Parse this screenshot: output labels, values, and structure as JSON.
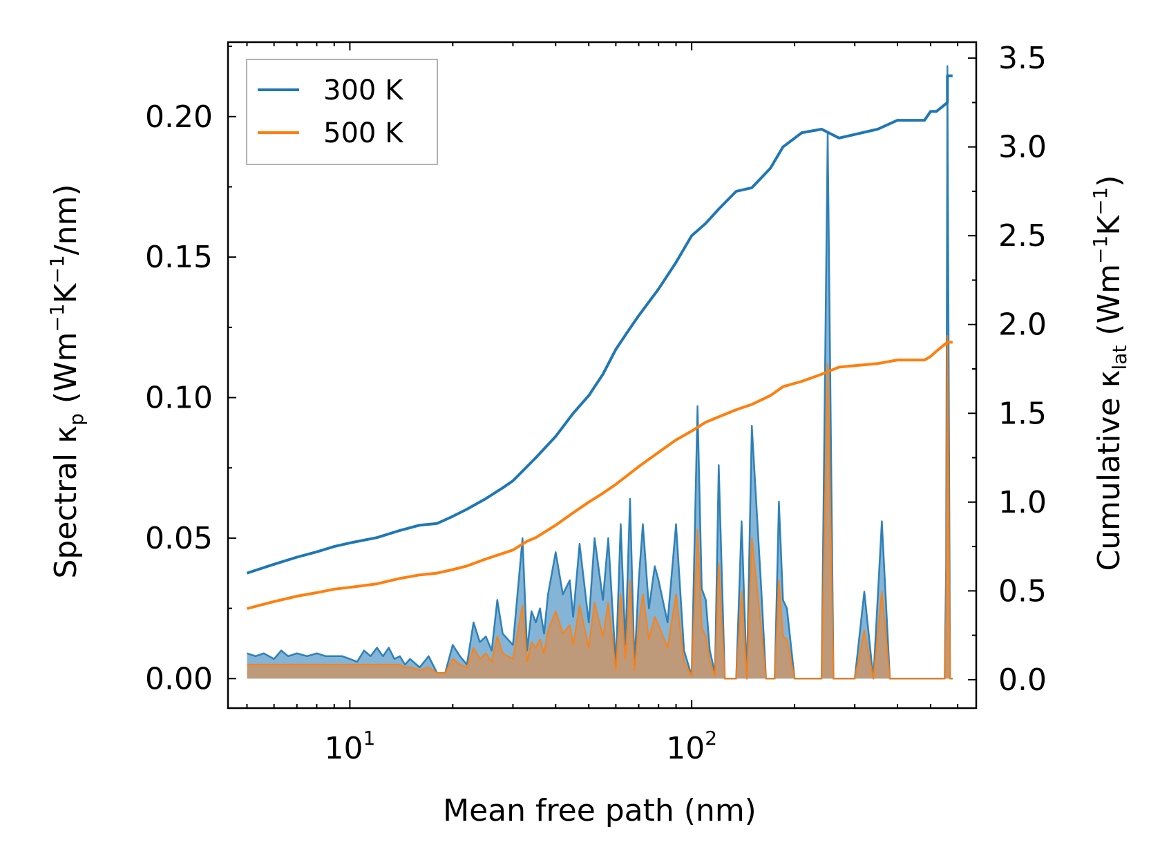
{
  "chart_data": {
    "type": "line",
    "xlabel": "Mean free path (nm)",
    "xscale": "log",
    "xlim": [
      4.4,
      680
    ],
    "x_tick_labels": [
      {
        "base": "10",
        "exp": "1",
        "value": 10
      },
      {
        "base": "10",
        "exp": "2",
        "value": 100
      }
    ],
    "left_axis": {
      "label_parts": {
        "prefix": "Spectral κ",
        "sub": "p",
        "mid1": " (Wm",
        "sup1": "−1",
        "mid2": "K",
        "sup2": "−1",
        "suffix": "/nm)"
      },
      "ylim": [
        -0.0105,
        0.2265
      ],
      "ticks": [
        0.0,
        0.05,
        0.1,
        0.15,
        0.2
      ],
      "tick_labels": [
        "0.00",
        "0.05",
        "0.10",
        "0.15",
        "0.20"
      ]
    },
    "right_axis": {
      "label_parts": {
        "prefix": "Cumulative κ",
        "sub": "lat",
        "mid1": " (Wm",
        "sup1": "−1",
        "mid2": "K",
        "sup2": "−1",
        "suffix": ")"
      },
      "ylim": [
        -0.16,
        3.59
      ],
      "ticks": [
        0.0,
        0.5,
        1.0,
        1.5,
        2.0,
        2.5,
        3.0,
        3.5
      ],
      "tick_labels": [
        "0.0",
        "0.5",
        "1.0",
        "1.5",
        "2.0",
        "2.5",
        "3.0",
        "3.5"
      ]
    },
    "legend": {
      "placement": "top-left",
      "entries": [
        "300 K",
        "500 K"
      ]
    },
    "colors": {
      "300K": "#1f77b4",
      "500K": "#ff7f0e",
      "fill300": "#1f77b4",
      "fill500": "#c8956a"
    },
    "series": [
      {
        "name": "300 K",
        "kind": "cumulative",
        "axis": "right",
        "x": [
          5,
          6,
          7,
          8,
          9,
          10,
          12,
          14,
          16,
          18,
          20,
          22,
          25,
          28,
          30,
          33,
          35,
          40,
          45,
          50,
          55,
          60,
          65,
          70,
          80,
          90,
          100,
          110,
          120,
          135,
          150,
          170,
          185,
          210,
          240,
          270,
          350,
          400,
          480,
          500,
          520,
          560,
          560.1,
          580
        ],
        "values": [
          0.6,
          0.65,
          0.69,
          0.72,
          0.75,
          0.77,
          0.8,
          0.84,
          0.87,
          0.88,
          0.92,
          0.96,
          1.02,
          1.08,
          1.12,
          1.2,
          1.25,
          1.37,
          1.5,
          1.6,
          1.72,
          1.86,
          1.96,
          2.05,
          2.2,
          2.35,
          2.5,
          2.57,
          2.65,
          2.75,
          2.77,
          2.88,
          3.0,
          3.08,
          3.1,
          3.05,
          3.1,
          3.15,
          3.15,
          3.2,
          3.2,
          3.25,
          3.4,
          3.4
        ]
      },
      {
        "name": "500 K",
        "kind": "cumulative",
        "axis": "right",
        "x": [
          5,
          6,
          7,
          8,
          9,
          10,
          12,
          14,
          16,
          18,
          20,
          22,
          25,
          30,
          33,
          35,
          40,
          45,
          50,
          55,
          60,
          70,
          80,
          90,
          100,
          110,
          120,
          135,
          150,
          170,
          185,
          210,
          240,
          270,
          350,
          400,
          480,
          500,
          520,
          560,
          580
        ],
        "values": [
          0.4,
          0.44,
          0.47,
          0.49,
          0.51,
          0.52,
          0.54,
          0.57,
          0.59,
          0.6,
          0.62,
          0.64,
          0.68,
          0.73,
          0.78,
          0.8,
          0.87,
          0.94,
          1.0,
          1.05,
          1.1,
          1.2,
          1.28,
          1.35,
          1.4,
          1.45,
          1.48,
          1.52,
          1.55,
          1.6,
          1.65,
          1.68,
          1.72,
          1.76,
          1.78,
          1.8,
          1.8,
          1.82,
          1.85,
          1.9,
          1.9
        ]
      },
      {
        "name": "300 K spectral",
        "kind": "spectral",
        "axis": "left",
        "x": [
          5,
          5.3,
          5.6,
          6,
          6.3,
          6.6,
          7,
          7.5,
          8,
          8.5,
          9,
          9.5,
          10,
          10.5,
          11,
          11.5,
          12,
          12.5,
          13,
          13.5,
          14,
          14.5,
          15,
          16,
          17,
          18,
          19,
          20,
          21,
          22,
          23,
          24,
          25,
          26,
          27,
          28,
          30,
          32,
          33,
          34,
          35,
          36,
          37,
          38,
          40,
          42,
          44,
          45,
          47,
          50,
          52,
          55,
          57,
          60,
          62,
          64,
          66,
          68,
          70,
          72,
          75,
          78,
          80,
          85,
          90,
          95,
          100,
          104,
          107,
          110,
          113,
          117,
          120,
          125,
          130,
          135,
          140,
          145,
          150,
          160,
          165,
          170,
          175,
          180,
          185,
          190,
          200,
          210,
          220,
          230,
          240,
          250,
          260,
          270,
          280,
          300,
          320,
          340,
          360,
          380,
          400,
          420,
          440,
          460,
          480,
          500,
          520,
          540,
          550,
          555,
          560,
          570,
          580
        ],
        "values": [
          0.009,
          0.008,
          0.009,
          0.007,
          0.01,
          0.008,
          0.009,
          0.008,
          0.009,
          0.008,
          0.008,
          0.008,
          0.007,
          0.006,
          0.01,
          0.008,
          0.011,
          0.008,
          0.011,
          0.007,
          0.008,
          0.005,
          0.007,
          0.004,
          0.008,
          0.002,
          0.002,
          0.012,
          0.008,
          0.005,
          0.02,
          0.013,
          0.015,
          0.01,
          0.028,
          0.016,
          0.012,
          0.05,
          0.01,
          0.024,
          0.02,
          0.025,
          0.016,
          0.03,
          0.045,
          0.03,
          0.035,
          0.022,
          0.048,
          0.02,
          0.05,
          0.028,
          0.05,
          0.005,
          0.055,
          0.012,
          0.064,
          0.005,
          0.035,
          0.055,
          0.025,
          0.04,
          0.035,
          0.02,
          0.055,
          0.01,
          0.001,
          0.097,
          0.032,
          0.028,
          0.01,
          0.002,
          0.076,
          0.0,
          0.0,
          0.0,
          0.056,
          0.0,
          0.09,
          0.031,
          0.0,
          0.0,
          0.0,
          0.063,
          0.028,
          0.025,
          0.0,
          0.0,
          0.0,
          0.0,
          0.0,
          0.194,
          0.0,
          0.0,
          0.0,
          0.0,
          0.031,
          0.0,
          0.056,
          0.0,
          0.0,
          0.0,
          0.0,
          0.0,
          0.0,
          0.0,
          0.0,
          0.0,
          0.0,
          0.04,
          0.218,
          0.0,
          0.0
        ]
      },
      {
        "name": "500 K spectral",
        "kind": "spectral",
        "axis": "left",
        "x": [
          5,
          5.3,
          5.6,
          6,
          6.3,
          6.6,
          7,
          7.5,
          8,
          8.5,
          9,
          9.5,
          10,
          10.5,
          11,
          11.5,
          12,
          12.5,
          13,
          13.5,
          14,
          14.5,
          15,
          16,
          17,
          18,
          19,
          20,
          21,
          22,
          23,
          24,
          25,
          26,
          27,
          28,
          30,
          32,
          33,
          34,
          35,
          36,
          37,
          38,
          40,
          42,
          44,
          45,
          47,
          50,
          52,
          55,
          57,
          60,
          62,
          64,
          66,
          68,
          70,
          72,
          75,
          78,
          80,
          85,
          90,
          95,
          100,
          104,
          107,
          110,
          113,
          117,
          120,
          125,
          130,
          135,
          140,
          145,
          150,
          160,
          165,
          170,
          175,
          180,
          185,
          190,
          200,
          210,
          220,
          230,
          240,
          250,
          260,
          270,
          280,
          300,
          320,
          340,
          360,
          380,
          400,
          420,
          440,
          460,
          480,
          500,
          520,
          540,
          550,
          555,
          560,
          570,
          580
        ],
        "values": [
          0.005,
          0.005,
          0.005,
          0.005,
          0.005,
          0.005,
          0.005,
          0.005,
          0.005,
          0.005,
          0.005,
          0.005,
          0.005,
          0.005,
          0.005,
          0.005,
          0.005,
          0.005,
          0.005,
          0.005,
          0.005,
          0.004,
          0.004,
          0.003,
          0.004,
          0.002,
          0.002,
          0.007,
          0.005,
          0.004,
          0.011,
          0.007,
          0.009,
          0.006,
          0.015,
          0.009,
          0.007,
          0.026,
          0.006,
          0.013,
          0.011,
          0.014,
          0.009,
          0.017,
          0.024,
          0.016,
          0.019,
          0.012,
          0.026,
          0.011,
          0.027,
          0.015,
          0.027,
          0.003,
          0.03,
          0.007,
          0.035,
          0.003,
          0.019,
          0.03,
          0.014,
          0.022,
          0.019,
          0.011,
          0.03,
          0.006,
          0.001,
          0.053,
          0.018,
          0.015,
          0.006,
          0.001,
          0.041,
          0.0,
          0.0,
          0.0,
          0.031,
          0.0,
          0.05,
          0.017,
          0.0,
          0.0,
          0.0,
          0.035,
          0.015,
          0.014,
          0.0,
          0.0,
          0.0,
          0.0,
          0.0,
          0.112,
          0.0,
          0.0,
          0.0,
          0.0,
          0.017,
          0.0,
          0.031,
          0.0,
          0.0,
          0.0,
          0.0,
          0.0,
          0.0,
          0.0,
          0.0,
          0.0,
          0.0,
          0.022,
          0.122,
          0.0,
          0.0
        ]
      }
    ]
  }
}
